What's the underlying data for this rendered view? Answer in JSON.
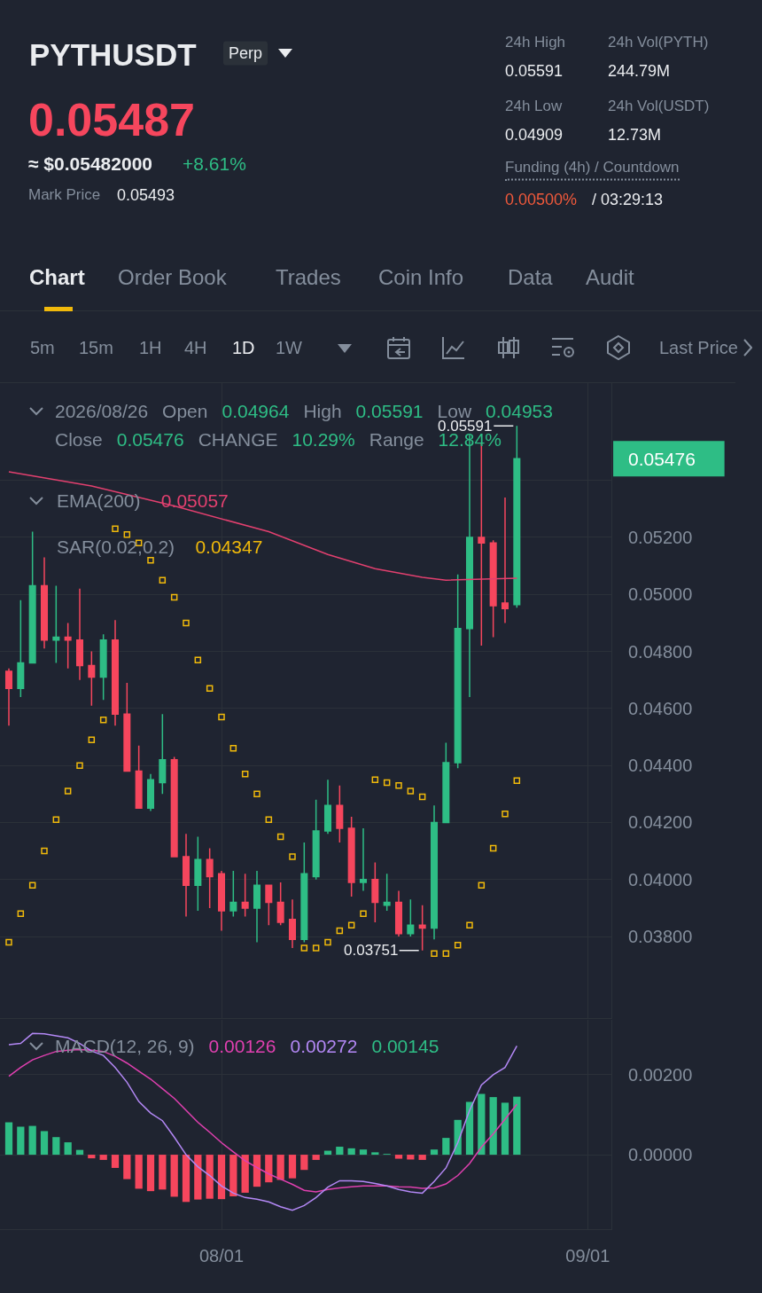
{
  "chart_data": [
    {
      "type": "other",
      "annotations": [
        "PYTHUSDT",
        "Perp",
        "0.05487",
        "≈ $0.05482000",
        "+8.61%",
        "Mark Price",
        "0.05493",
        "24h High",
        "0.05591",
        "24h Vol(PYTH)",
        "244.79M",
        "24h Low",
        "0.04909",
        "24h Vol(USDT)",
        "12.73M",
        "Funding (4h) / Countdown",
        "0.00500%",
        "/ 03:29:13",
        "Chart",
        "Order Book",
        "Trades",
        "Coin Info",
        "Data",
        "Audit",
        "5m",
        "15m",
        "1H",
        "4H",
        "1D",
        "1W",
        "Last Price"
      ]
    },
    {
      "type": "candlestick",
      "x": [
        "2026-07-14",
        "2026-07-15",
        "2026-07-16",
        "2026-07-17",
        "2026-07-18",
        "2026-07-19",
        "2026-07-20",
        "2026-07-21",
        "2026-07-22",
        "2026-07-23",
        "2026-07-24",
        "2026-07-25",
        "2026-07-26",
        "2026-07-27",
        "2026-07-28",
        "2026-07-29",
        "2026-07-30",
        "2026-07-31",
        "2026-08-01",
        "2026-08-02",
        "2026-08-03",
        "2026-08-04",
        "2026-08-05",
        "2026-08-06",
        "2026-08-07",
        "2026-08-08",
        "2026-08-09",
        "2026-08-10",
        "2026-08-11",
        "2026-08-12",
        "2026-08-13",
        "2026-08-14",
        "2026-08-15",
        "2026-08-16",
        "2026-08-17",
        "2026-08-18",
        "2026-08-19",
        "2026-08-20",
        "2026-08-21",
        "2026-08-22",
        "2026-08-23",
        "2026-08-24",
        "2026-08-25",
        "2026-08-26"
      ],
      "ohlc": [
        [
          0.0473,
          0.0474,
          0.0454,
          0.0467
        ],
        [
          0.0467,
          0.0498,
          0.0464,
          0.0476
        ],
        [
          0.0476,
          0.0522,
          0.0476,
          0.0503
        ],
        [
          0.0503,
          0.0513,
          0.0481,
          0.0484
        ],
        [
          0.0484,
          0.0503,
          0.0476,
          0.0485
        ],
        [
          0.0485,
          0.049,
          0.0474,
          0.0484
        ],
        [
          0.0484,
          0.0502,
          0.047,
          0.0475
        ],
        [
          0.0475,
          0.048,
          0.0461,
          0.0471
        ],
        [
          0.0471,
          0.0486,
          0.0463,
          0.0484
        ],
        [
          0.0484,
          0.0491,
          0.0454,
          0.0458
        ],
        [
          0.0458,
          0.0469,
          0.0438,
          0.0438
        ],
        [
          0.0438,
          0.0447,
          0.0425,
          0.0425
        ],
        [
          0.0425,
          0.0437,
          0.0424,
          0.0435
        ],
        [
          0.0434,
          0.0458,
          0.043,
          0.0442
        ],
        [
          0.0442,
          0.0443,
          0.0408,
          0.0408
        ],
        [
          0.0408,
          0.0416,
          0.0387,
          0.0398
        ],
        [
          0.0398,
          0.0415,
          0.0389,
          0.0407
        ],
        [
          0.0407,
          0.0411,
          0.039,
          0.0401
        ],
        [
          0.0402,
          0.0403,
          0.0382,
          0.0389
        ],
        [
          0.0389,
          0.0403,
          0.0387,
          0.0392
        ],
        [
          0.0392,
          0.0402,
          0.0387,
          0.039
        ],
        [
          0.039,
          0.0403,
          0.0378,
          0.0398
        ],
        [
          0.0398,
          0.0398,
          0.0384,
          0.0392
        ],
        [
          0.0392,
          0.0399,
          0.0384,
          0.0385
        ],
        [
          0.0386,
          0.0393,
          0.0376,
          0.0379
        ],
        [
          0.0379,
          0.0413,
          0.0378,
          0.0402
        ],
        [
          0.0401,
          0.0428,
          0.04,
          0.0417
        ],
        [
          0.0417,
          0.0435,
          0.0416,
          0.0426
        ],
        [
          0.0426,
          0.0433,
          0.0413,
          0.0418
        ],
        [
          0.0418,
          0.0422,
          0.0394,
          0.0399
        ],
        [
          0.0399,
          0.0418,
          0.0396,
          0.04
        ],
        [
          0.04,
          0.0406,
          0.0385,
          0.0392
        ],
        [
          0.0391,
          0.0402,
          0.0389,
          0.0392
        ],
        [
          0.0392,
          0.0396,
          0.038,
          0.0381
        ],
        [
          0.0381,
          0.0393,
          0.038,
          0.0384
        ],
        [
          0.0384,
          0.0391,
          0.03751,
          0.0383
        ],
        [
          0.0383,
          0.0426,
          0.0379,
          0.042
        ],
        [
          0.042,
          0.0448,
          0.042,
          0.0441
        ],
        [
          0.0441,
          0.0507,
          0.0439,
          0.0488
        ],
        [
          0.0488,
          0.0556,
          0.0464,
          0.052
        ],
        [
          0.052,
          0.0553,
          0.0482,
          0.0518
        ],
        [
          0.0518,
          0.0519,
          0.0485,
          0.0496
        ],
        [
          0.0497,
          0.0534,
          0.049,
          0.0495
        ],
        [
          0.04964,
          0.05591,
          0.04953,
          0.05476
        ]
      ],
      "series": [
        {
          "name": "EMA(200)",
          "type": "line",
          "color": "#e2406f",
          "x": [
            "2026-07-14",
            "2026-07-21",
            "2026-07-28",
            "2026-08-05",
            "2026-08-10",
            "2026-08-14",
            "2026-08-18",
            "2026-08-20",
            "2026-08-26"
          ],
          "values": [
            0.0543,
            0.0538,
            0.0531,
            0.0522,
            0.0514,
            0.0509,
            0.0506,
            0.0505,
            0.05057
          ]
        },
        {
          "name": "SAR(0.02,0.2)",
          "type": "scatter",
          "marker": "square",
          "color": "#f0b90b",
          "values": [
            0.0378,
            0.0388,
            0.0398,
            0.041,
            0.0421,
            0.0431,
            0.044,
            0.0449,
            0.0456,
            0.0523,
            0.0521,
            0.0518,
            0.0512,
            0.0505,
            0.0499,
            0.049,
            0.0477,
            0.0467,
            0.0457,
            0.0446,
            0.0437,
            0.043,
            0.0421,
            0.0415,
            0.0408,
            0.0376,
            0.0376,
            0.0378,
            0.0382,
            0.0384,
            0.0388,
            0.0435,
            0.0434,
            0.0433,
            0.0431,
            0.0429,
            0.0374,
            0.0374,
            0.0377,
            0.0384,
            0.0398,
            0.0411,
            0.0423,
            0.04347
          ]
        }
      ],
      "annotations": [
        "2026/08/26",
        "Open",
        "0.04964",
        "High",
        "0.05591",
        "Low",
        "0.04953",
        "Close",
        "0.05476",
        "CHANGE",
        "10.29%",
        "Range",
        "12.84%",
        "0.05057",
        "0.04347",
        {
          "text": "0.05591",
          "x": "2026-08-26",
          "y": 0.05591
        },
        {
          "text": "0.03751",
          "x": "2026-08-18",
          "y": 0.03751
        }
      ],
      "xlim": [
        "2026-07-13T06:00",
        "2026-09-03"
      ],
      "xticks": [
        {
          "value": "2026-08-01",
          "label": null
        },
        {
          "value": "2026-09-01",
          "label": null
        }
      ],
      "ylim": [
        0.03514,
        0.05741
      ],
      "yticks": [
        {
          "value": 0.038,
          "label": "0.03800"
        },
        {
          "value": 0.04,
          "label": "0.04000"
        },
        {
          "value": 0.042,
          "label": "0.04200"
        },
        {
          "value": 0.044,
          "label": "0.04400"
        },
        {
          "value": 0.046,
          "label": "0.04600"
        },
        {
          "value": 0.048,
          "label": "0.04800"
        },
        {
          "value": 0.05,
          "label": "0.05000"
        },
        {
          "value": 0.052,
          "label": "0.05200"
        },
        {
          "value": 0.054,
          "label": null
        },
        {
          "value": 0.05476,
          "label": "0.05476"
        }
      ],
      "grid": true,
      "legend": "top left",
      "tick_labels": "y"
    },
    {
      "type": "bar",
      "x": [
        "2026-07-14",
        "2026-07-15",
        "2026-07-16",
        "2026-07-17",
        "2026-07-18",
        "2026-07-19",
        "2026-07-20",
        "2026-07-21",
        "2026-07-22",
        "2026-07-23",
        "2026-07-24",
        "2026-07-25",
        "2026-07-26",
        "2026-07-27",
        "2026-07-28",
        "2026-07-29",
        "2026-07-30",
        "2026-07-31",
        "2026-08-01",
        "2026-08-02",
        "2026-08-03",
        "2026-08-04",
        "2026-08-05",
        "2026-08-06",
        "2026-08-07",
        "2026-08-08",
        "2026-08-09",
        "2026-08-10",
        "2026-08-11",
        "2026-08-12",
        "2026-08-13",
        "2026-08-14",
        "2026-08-15",
        "2026-08-16",
        "2026-08-17",
        "2026-08-18",
        "2026-08-19",
        "2026-08-20",
        "2026-08-21",
        "2026-08-22",
        "2026-08-23",
        "2026-08-24",
        "2026-08-25",
        "2026-08-26"
      ],
      "series": [
        {
          "type": "line",
          "color": "#e040b0",
          "values": [
            0.00196,
            0.00218,
            0.00237,
            0.00248,
            0.00258,
            0.00261,
            0.00263,
            0.00261,
            0.00258,
            0.00246,
            0.00229,
            0.00209,
            0.00189,
            0.00165,
            0.00141,
            0.00111,
            0.00081,
            0.00056,
            0.0003,
            7e-05,
            -0.00015,
            -0.00032,
            -0.00048,
            -0.00061,
            -0.00074,
            -0.00089,
            -0.00093,
            -0.00087,
            -0.00083,
            -0.0008,
            -0.00078,
            -0.00078,
            -0.00078,
            -0.0008,
            -0.00081,
            -0.00084,
            -0.00083,
            -0.00073,
            -0.00052,
            -0.00022,
            0.00019,
            0.00052,
            0.00089,
            0.00126
          ]
        },
        {
          "type": "line",
          "color": "#b388f5",
          "values": [
            0.00275,
            0.00278,
            0.00303,
            0.00302,
            0.00297,
            0.00292,
            0.00278,
            0.00259,
            0.00248,
            0.00218,
            0.00181,
            0.00133,
            0.00104,
            0.00085,
            0.00044,
            0,
            -0.0003,
            -0.00052,
            -0.00078,
            -0.00096,
            -0.00107,
            -0.00111,
            -0.00118,
            -0.0013,
            -0.00139,
            -0.00127,
            -0.00107,
            -0.00081,
            -0.00065,
            -0.00065,
            -0.00067,
            -0.00072,
            -0.00078,
            -0.00087,
            -0.00093,
            -0.00096,
            -0.00067,
            -0.00033,
            0.0003,
            0.00111,
            0.00174,
            0.002,
            0.00218,
            0.00272
          ]
        },
        {
          "type": "bar",
          "color": "#2ebd85",
          "values": [
            0.00081,
            0.0007,
            0.00072,
            0.00059,
            0.00044,
            0.00031,
            0.00012,
            -9e-05,
            -0.00013,
            -0.00033,
            -0.00061,
            -0.00085,
            -0.00091,
            -0.00087,
            -0.00105,
            -0.00118,
            -0.00112,
            -0.0011,
            -0.00111,
            -0.00104,
            -0.00095,
            -0.0008,
            -0.00069,
            -0.00063,
            -0.00059,
            -0.00038,
            -0.00013,
            0.0001,
            0.0002,
            0.00016,
            0.00013,
            6e-05,
            2e-05,
            -0.0001,
            -0.00012,
            -0.00013,
            0.00013,
            0.00042,
            0.00087,
            0.00132,
            0.00152,
            0.00144,
            0.0013,
            0.00145
          ],
          "colors": [
            "#2ebd85",
            "#2ebd85",
            "#2ebd85",
            "#2ebd85",
            "#2ebd85",
            "#2ebd85",
            "#2ebd85",
            "#f6465d",
            "#f6465d",
            "#f6465d",
            "#f6465d",
            "#f6465d",
            "#f6465d",
            "#f6465d",
            "#f6465d",
            "#f6465d",
            "#f6465d",
            "#f6465d",
            "#f6465d",
            "#f6465d",
            "#f6465d",
            "#f6465d",
            "#f6465d",
            "#f6465d",
            "#f6465d",
            "#f6465d",
            "#f6465d",
            "#2ebd85",
            "#2ebd85",
            "#2ebd85",
            "#2ebd85",
            "#2ebd85",
            "#2ebd85",
            "#f6465d",
            "#f6465d",
            "#f6465d",
            "#2ebd85",
            "#2ebd85",
            "#2ebd85",
            "#2ebd85",
            "#2ebd85",
            "#2ebd85",
            "#2ebd85",
            "#2ebd85"
          ]
        }
      ],
      "annotations": [
        "MACD(12, 26, 9)",
        "0.00126",
        "0.00272",
        "0.00145"
      ],
      "xlim": [
        "2026-07-13T06:00",
        "2026-09-03"
      ],
      "xticks": [
        {
          "value": "2026-08-01",
          "label": "08/01"
        },
        {
          "value": "2026-09-01",
          "label": "09/01"
        }
      ],
      "ylim": [
        -0.00186,
        0.00337
      ],
      "yticks": [
        {
          "value": 0,
          "label": "0.00000"
        },
        {
          "value": 0.002,
          "label": "0.00200"
        }
      ],
      "grid": true
    }
  ]
}
